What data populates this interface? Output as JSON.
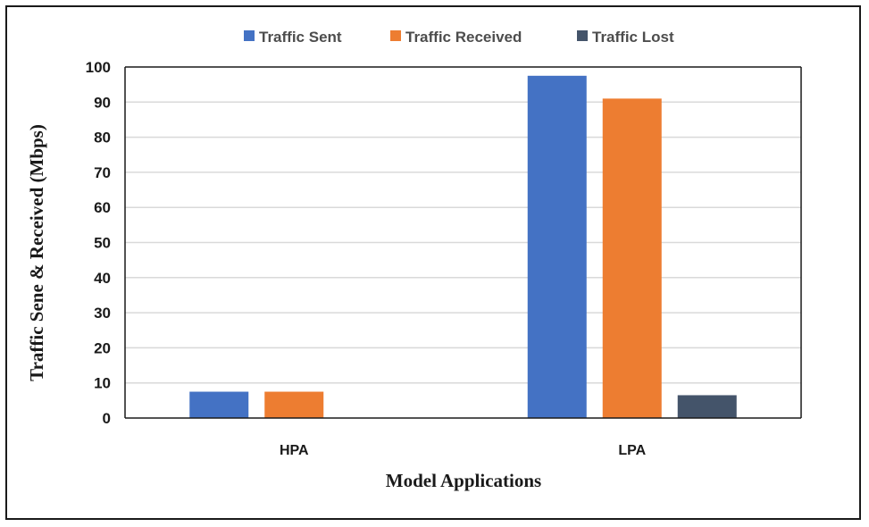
{
  "chart_data": {
    "type": "bar",
    "categories": [
      "HPA",
      "LPA"
    ],
    "series": [
      {
        "name": "Traffic Sent",
        "values": [
          7.5,
          97.5
        ],
        "color": "#4472C4"
      },
      {
        "name": "Traffic Received",
        "values": [
          7.5,
          91
        ],
        "color": "#ED7D31"
      },
      {
        "name": "Traffic Lost",
        "values": [
          0,
          6.5
        ],
        "color": "#44546A"
      }
    ],
    "xlabel": "Model Applications",
    "ylabel": "Traffic Sene & Received (Mbps)",
    "ylim": [
      0,
      100
    ],
    "yticks": [
      0,
      10,
      20,
      30,
      40,
      50,
      60,
      70,
      80,
      90,
      100
    ],
    "grid": true,
    "legend_position": "top"
  }
}
